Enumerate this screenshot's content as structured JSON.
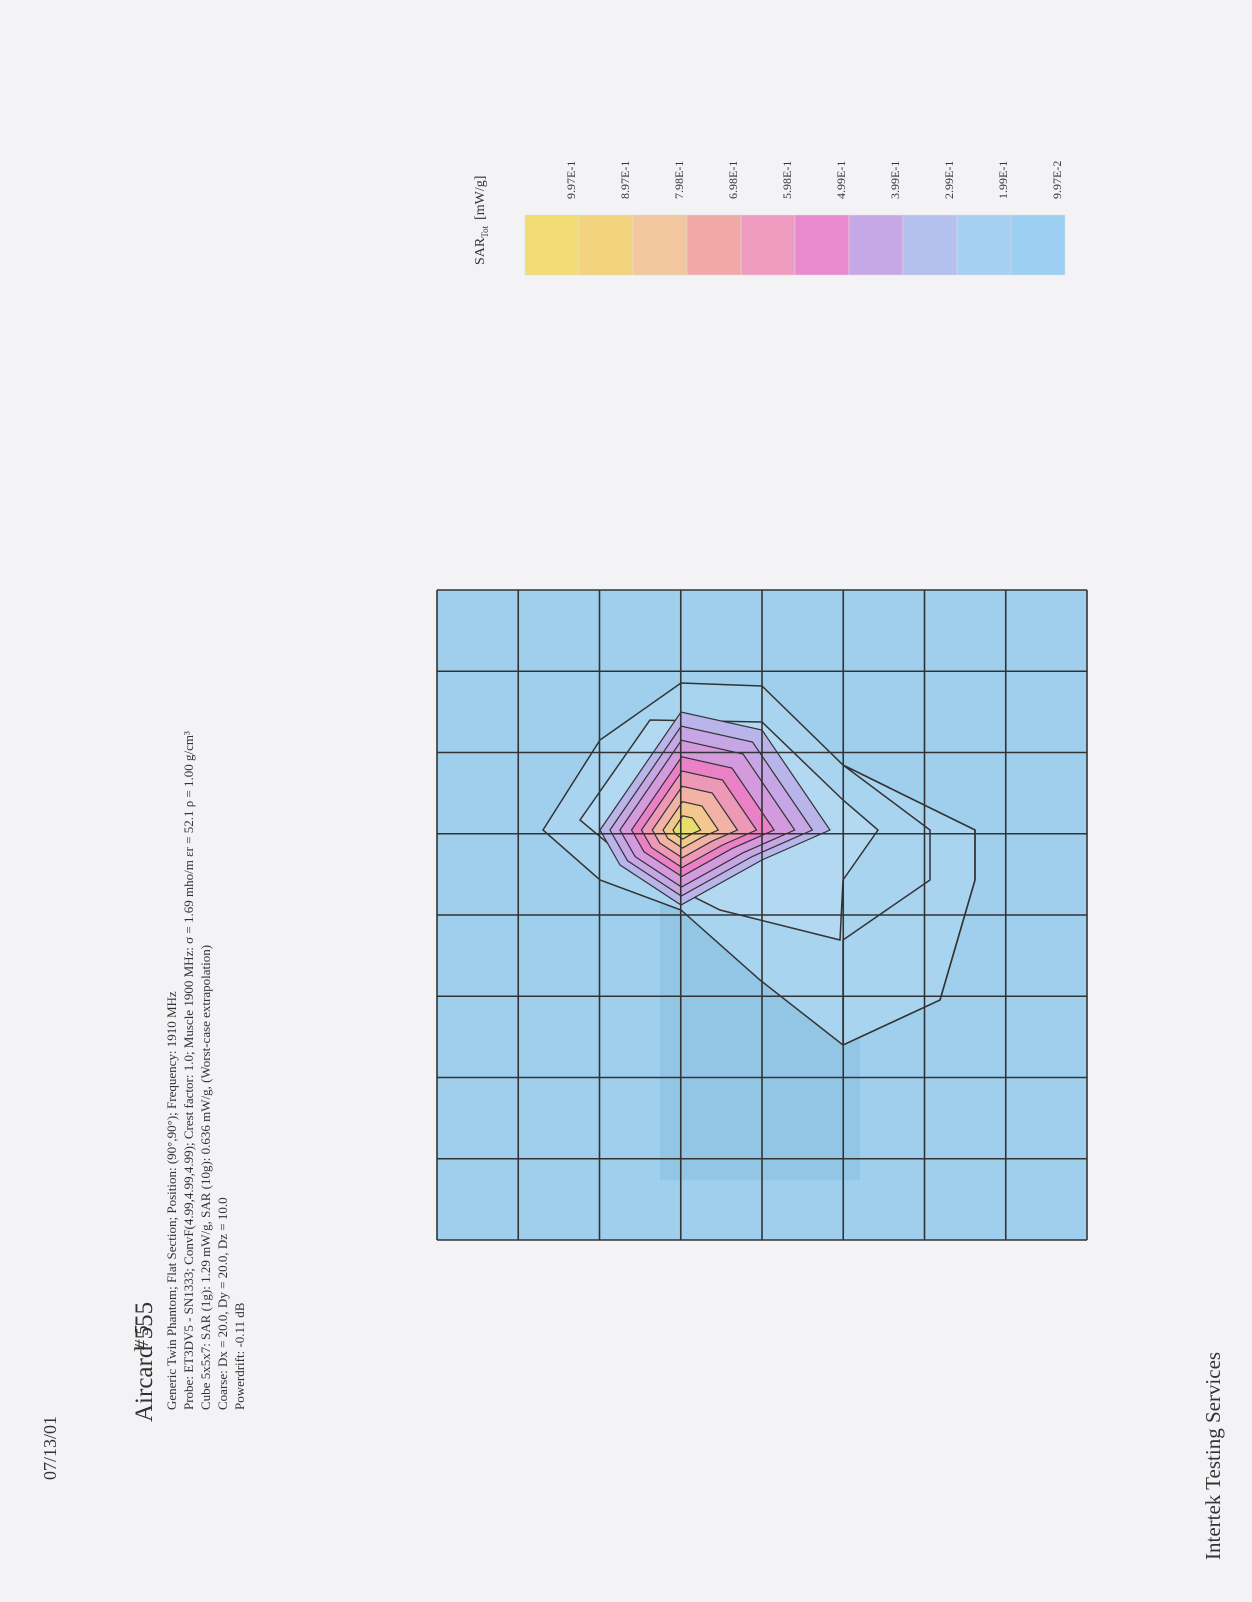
{
  "header": {
    "date": "07/13/01",
    "title": "Aircard 555",
    "handwritten_note": "# 5"
  },
  "info_lines": [
    "Generic Twin Phantom; Flat Section; Position: (90°,90°); Frequency: 1910 MHz",
    "Probe: ET3DV5 - SN1333; ConvF(4.99,4.99,4.99); Crest factor: 1.0; Muscle 1900 MHz: σ = 1.69 mho/m εr = 52.1 ρ = 1.00 g/cm³",
    "Cube 5x5x7: SAR (1g): 1.29  mW/g, SAR (10g): 0.636  mW/g, (Worst-case extrapolation)",
    "Coarse: Dx = 20.0, Dy = 20.0, Dz = 10.0",
    "Powerdrift: -0.11 dB"
  ],
  "legend": {
    "title": "SAR",
    "subscript": "Tot",
    "unit": "[mW/g]",
    "labels": [
      "9.97E-1",
      "8.97E-1",
      "7.98E-1",
      "6.98E-1",
      "5.98E-1",
      "4.99E-1",
      "3.99E-1",
      "2.99E-1",
      "1.99E-1",
      "9.97E-2"
    ]
  },
  "footer": "Intertek Testing Services"
}
